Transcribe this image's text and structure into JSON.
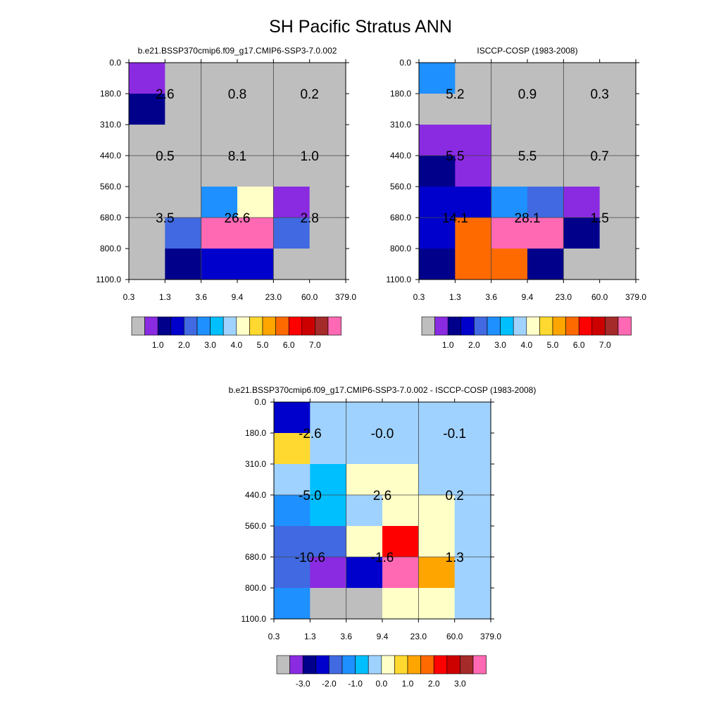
{
  "title": "SH Pacific Stratus ANN",
  "palettes": {
    "abs": [
      "#bebebe",
      "#8a2be2",
      "#00008b",
      "#0000cd",
      "#4169e1",
      "#1e90ff",
      "#00bfff",
      "#a0d2ff",
      "#ffffc8",
      "#ffd92f",
      "#ffa500",
      "#ff6a00",
      "#ff0000",
      "#cd0000",
      "#a52a2a",
      "#ff69b4"
    ],
    "diff": [
      "#bebebe",
      "#8a2be2",
      "#00008b",
      "#0000cd",
      "#4169e1",
      "#1e90ff",
      "#00bfff",
      "#a0d2ff",
      "#ffffc8",
      "#ffd92f",
      "#ffa500",
      "#ff6a00",
      "#ff0000",
      "#cd0000",
      "#a52a2a",
      "#ff69b4"
    ]
  },
  "chart_data": [
    {
      "type": "heatmap",
      "title": "b.e21.BSSP370cmip6.f09_g17.CMIP6-SSP3-7.0.002",
      "xticks": [
        "0.3",
        "1.3",
        "3.6",
        "9.4",
        "23.0",
        "60.0",
        "379.0"
      ],
      "yticks": [
        "0.0",
        "180.0",
        "310.0",
        "440.0",
        "560.0",
        "680.0",
        "800.0",
        "1100.0"
      ],
      "cells": [
        [
          1,
          0,
          0,
          0,
          0,
          0
        ],
        [
          2,
          0,
          0,
          0,
          0,
          0
        ],
        [
          0,
          0,
          0,
          0,
          0,
          0
        ],
        [
          0,
          0,
          0,
          0,
          0,
          0
        ],
        [
          0,
          0,
          5,
          8,
          1,
          0
        ],
        [
          0,
          4,
          15,
          15,
          4,
          0
        ],
        [
          0,
          2,
          3,
          3,
          0,
          0
        ]
      ],
      "labels": [
        {
          "col": 1,
          "row": 1,
          "text": "2.6"
        },
        {
          "col": 3,
          "row": 1,
          "text": "0.8"
        },
        {
          "col": 5,
          "row": 1,
          "text": "0.2"
        },
        {
          "col": 1,
          "row": 3,
          "text": "0.5"
        },
        {
          "col": 3,
          "row": 3,
          "text": "8.1"
        },
        {
          "col": 5,
          "row": 3,
          "text": "1.0"
        },
        {
          "col": 1,
          "row": 5,
          "text": "3.5"
        },
        {
          "col": 3,
          "row": 5,
          "text": "26.6"
        },
        {
          "col": 5,
          "row": 5,
          "text": "2.8"
        }
      ],
      "colorbar": {
        "palette": "abs",
        "labels": [
          "1.0",
          "2.0",
          "3.0",
          "4.0",
          "5.0",
          "6.0",
          "7.0"
        ]
      }
    },
    {
      "type": "heatmap",
      "title": "ISCCP-COSP (1983-2008)",
      "xticks": [
        "0.3",
        "1.3",
        "3.6",
        "9.4",
        "23.0",
        "60.0",
        "379.0"
      ],
      "yticks": [
        "0.0",
        "180.0",
        "310.0",
        "440.0",
        "560.0",
        "680.0",
        "800.0",
        "1100.0"
      ],
      "cells": [
        [
          5,
          0,
          0,
          0,
          0,
          0
        ],
        [
          0,
          0,
          0,
          0,
          0,
          0
        ],
        [
          1,
          1,
          0,
          0,
          0,
          0
        ],
        [
          2,
          1,
          0,
          0,
          0,
          0
        ],
        [
          3,
          3,
          5,
          4,
          1,
          0
        ],
        [
          3,
          11,
          15,
          15,
          2,
          0
        ],
        [
          2,
          11,
          11,
          2,
          0,
          0
        ]
      ],
      "labels": [
        {
          "col": 1,
          "row": 1,
          "text": "5.2"
        },
        {
          "col": 3,
          "row": 1,
          "text": "0.9"
        },
        {
          "col": 5,
          "row": 1,
          "text": "0.3"
        },
        {
          "col": 1,
          "row": 3,
          "text": "5.5"
        },
        {
          "col": 3,
          "row": 3,
          "text": "5.5"
        },
        {
          "col": 5,
          "row": 3,
          "text": "0.7"
        },
        {
          "col": 1,
          "row": 5,
          "text": "14.1"
        },
        {
          "col": 3,
          "row": 5,
          "text": "28.1"
        },
        {
          "col": 5,
          "row": 5,
          "text": "1.5"
        }
      ],
      "colorbar": {
        "palette": "abs",
        "labels": [
          "1.0",
          "2.0",
          "3.0",
          "4.0",
          "5.0",
          "6.0",
          "7.0"
        ]
      }
    },
    {
      "type": "heatmap",
      "title": "b.e21.BSSP370cmip6.f09_g17.CMIP6-SSP3-7.0.002 - ISCCP-COSP (1983-2008)",
      "xticks": [
        "0.3",
        "1.3",
        "3.6",
        "9.4",
        "23.0",
        "60.0",
        "379.0"
      ],
      "yticks": [
        "0.0",
        "180.0",
        "310.0",
        "440.0",
        "560.0",
        "680.0",
        "800.0",
        "1100.0"
      ],
      "cells": [
        [
          3,
          7,
          7,
          7,
          7,
          7
        ],
        [
          9,
          7,
          7,
          7,
          7,
          7
        ],
        [
          7,
          6,
          8,
          8,
          7,
          7
        ],
        [
          5,
          6,
          7,
          8,
          8,
          7
        ],
        [
          4,
          4,
          8,
          12,
          8,
          7
        ],
        [
          4,
          1,
          3,
          15,
          10,
          7
        ],
        [
          5,
          0,
          0,
          8,
          8,
          7
        ]
      ],
      "labels": [
        {
          "col": 1,
          "row": 1,
          "text": "-2.6"
        },
        {
          "col": 3,
          "row": 1,
          "text": "-0.0"
        },
        {
          "col": 5,
          "row": 1,
          "text": "-0.1"
        },
        {
          "col": 1,
          "row": 3,
          "text": "-5.0"
        },
        {
          "col": 3,
          "row": 3,
          "text": "2.6"
        },
        {
          "col": 5,
          "row": 3,
          "text": "0.2"
        },
        {
          "col": 1,
          "row": 5,
          "text": "-10.6"
        },
        {
          "col": 3,
          "row": 5,
          "text": "-1.6"
        },
        {
          "col": 5,
          "row": 5,
          "text": "1.3"
        }
      ],
      "colorbar": {
        "palette": "diff",
        "labels": [
          "-3.0",
          "-2.0",
          "-1.0",
          "0.0",
          "1.0",
          "2.0",
          "3.0"
        ]
      }
    }
  ]
}
